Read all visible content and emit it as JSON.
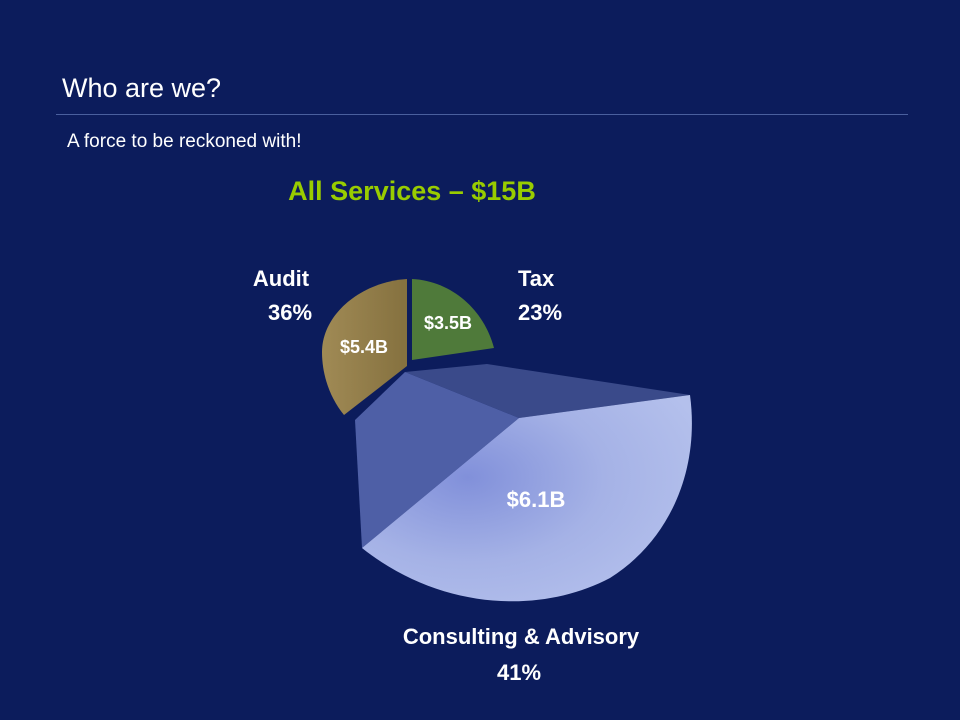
{
  "slide": {
    "title": "Who are we?",
    "subtitle": "A force to be reckoned with!"
  },
  "chart_data": {
    "type": "pie",
    "title": "All Services – $15B",
    "slices": [
      {
        "category": "Tax",
        "percent_label": "23%",
        "value_label": "$3.5B",
        "value": 3.5,
        "percent": 23
      },
      {
        "category": "Consulting & Advisory",
        "percent_label": "41%",
        "value_label": "$6.1B",
        "value": 6.1,
        "percent": 41
      },
      {
        "category": "Audit",
        "percent_label": "36%",
        "value_label": "$5.4B",
        "value": 5.4,
        "percent": 36
      }
    ],
    "colors": {
      "title": "#99cc00",
      "tax": "#4f7a3a",
      "consulting_light": "#a9b6e8",
      "consulting_mid": "#7f8fd6",
      "consulting_dark": "#4e5fa6",
      "consulting_back": "#3a4a8a",
      "audit": "#94804e",
      "label": "#ffffff"
    }
  }
}
